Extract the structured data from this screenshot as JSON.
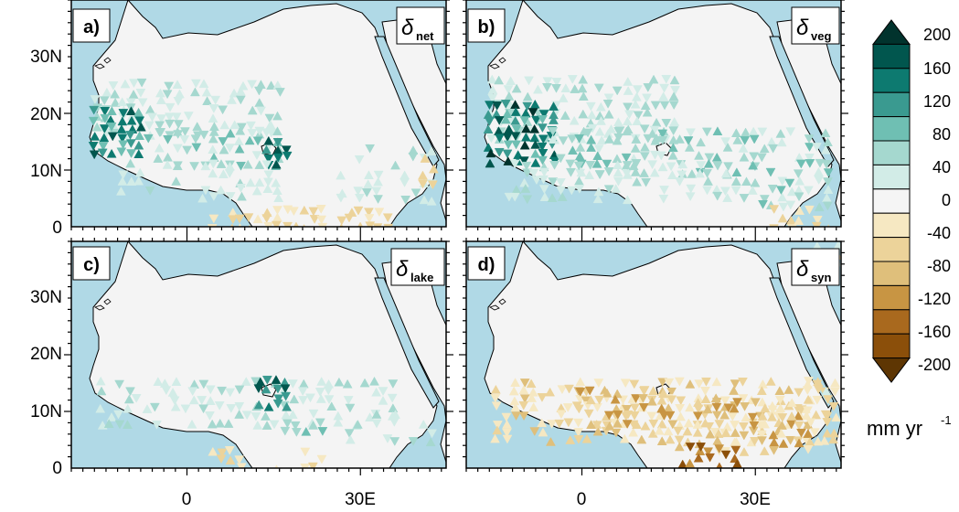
{
  "panels": [
    {
      "id": "a",
      "label": "a)",
      "symbol": "δ",
      "subscript": "net"
    },
    {
      "id": "b",
      "label": "b)",
      "symbol": "δ",
      "subscript": "veg"
    },
    {
      "id": "c",
      "label": "c)",
      "symbol": "δ",
      "subscript": "lake"
    },
    {
      "id": "d",
      "label": "d)",
      "symbol": "δ",
      "subscript": "syn"
    }
  ],
  "y_ticks": [
    "30N",
    "20N",
    "10N",
    "0"
  ],
  "x_ticks": [
    "0",
    "30E"
  ],
  "colorbar": {
    "labels": [
      "200",
      "160",
      "120",
      "80",
      "40",
      "0",
      "-40",
      "-80",
      "-120",
      "-160",
      "-200"
    ],
    "unit": "mm yr",
    "unit_exponent": "-1",
    "colors": [
      "#01332d",
      "#01564e",
      "#0d7a70",
      "#3a9a90",
      "#6fbfb3",
      "#a5d8cf",
      "#d2ece7",
      "#f5f5f5",
      "#f6e8c2",
      "#ecd39a",
      "#dfbf7b",
      "#c89543",
      "#a9691e",
      "#8b4f0a",
      "#5e3603"
    ]
  },
  "map_colors": {
    "ocean": "#b0d9e6",
    "land": "#f4f4f4",
    "border": "#000000"
  }
}
